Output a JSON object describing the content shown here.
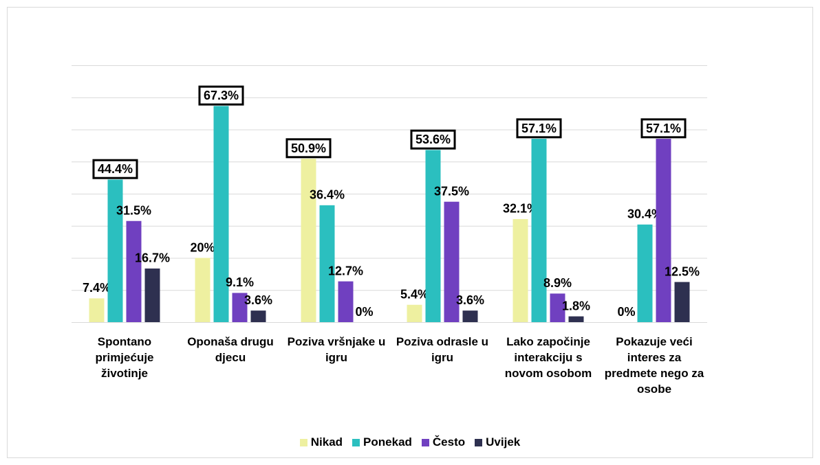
{
  "chart_data": {
    "type": "bar",
    "categories": [
      "Spontano primjećuje životinje",
      "Oponaša drugu djecu",
      "Poziva vršnjake u igru",
      "Poziva odrasle u igru",
      "Lako započinje interakciju s novom osobom",
      "Pokazuje veći interes za predmete nego za osobe"
    ],
    "series": [
      {
        "name": "Nikad",
        "color": "#eef0a0",
        "values": [
          7.4,
          20,
          50.9,
          5.4,
          32.1,
          0
        ],
        "value_labels": [
          "7.4%",
          "20%",
          "50.9%",
          "5.4%",
          "32.1%",
          "0%"
        ]
      },
      {
        "name": "Ponekad",
        "color": "#2bbfbf",
        "values": [
          44.4,
          67.3,
          36.4,
          53.6,
          57.1,
          30.4
        ],
        "value_labels": [
          "44.4%",
          "67.3%",
          "36.4%",
          "53.6%",
          "57.1%",
          "30.4%"
        ]
      },
      {
        "name": "Često",
        "color": "#7040c0",
        "values": [
          31.5,
          9.1,
          12.7,
          37.5,
          8.9,
          57.1
        ],
        "value_labels": [
          "31.5%",
          "9.1%",
          "12.7%",
          "37.5%",
          "8.9%",
          "57.1%"
        ]
      },
      {
        "name": "Uvijek",
        "color": "#2e3050",
        "values": [
          16.7,
          3.6,
          0,
          3.6,
          1.8,
          12.5
        ],
        "value_labels": [
          "16.7%",
          "3.6%",
          "0%",
          "3.6%",
          "1.8%",
          "12.5%"
        ]
      }
    ],
    "ylim": [
      0,
      80
    ],
    "yticks": [
      0,
      10,
      20,
      30,
      40,
      50,
      60,
      70,
      80
    ],
    "grid": true,
    "legend": "bottom"
  }
}
